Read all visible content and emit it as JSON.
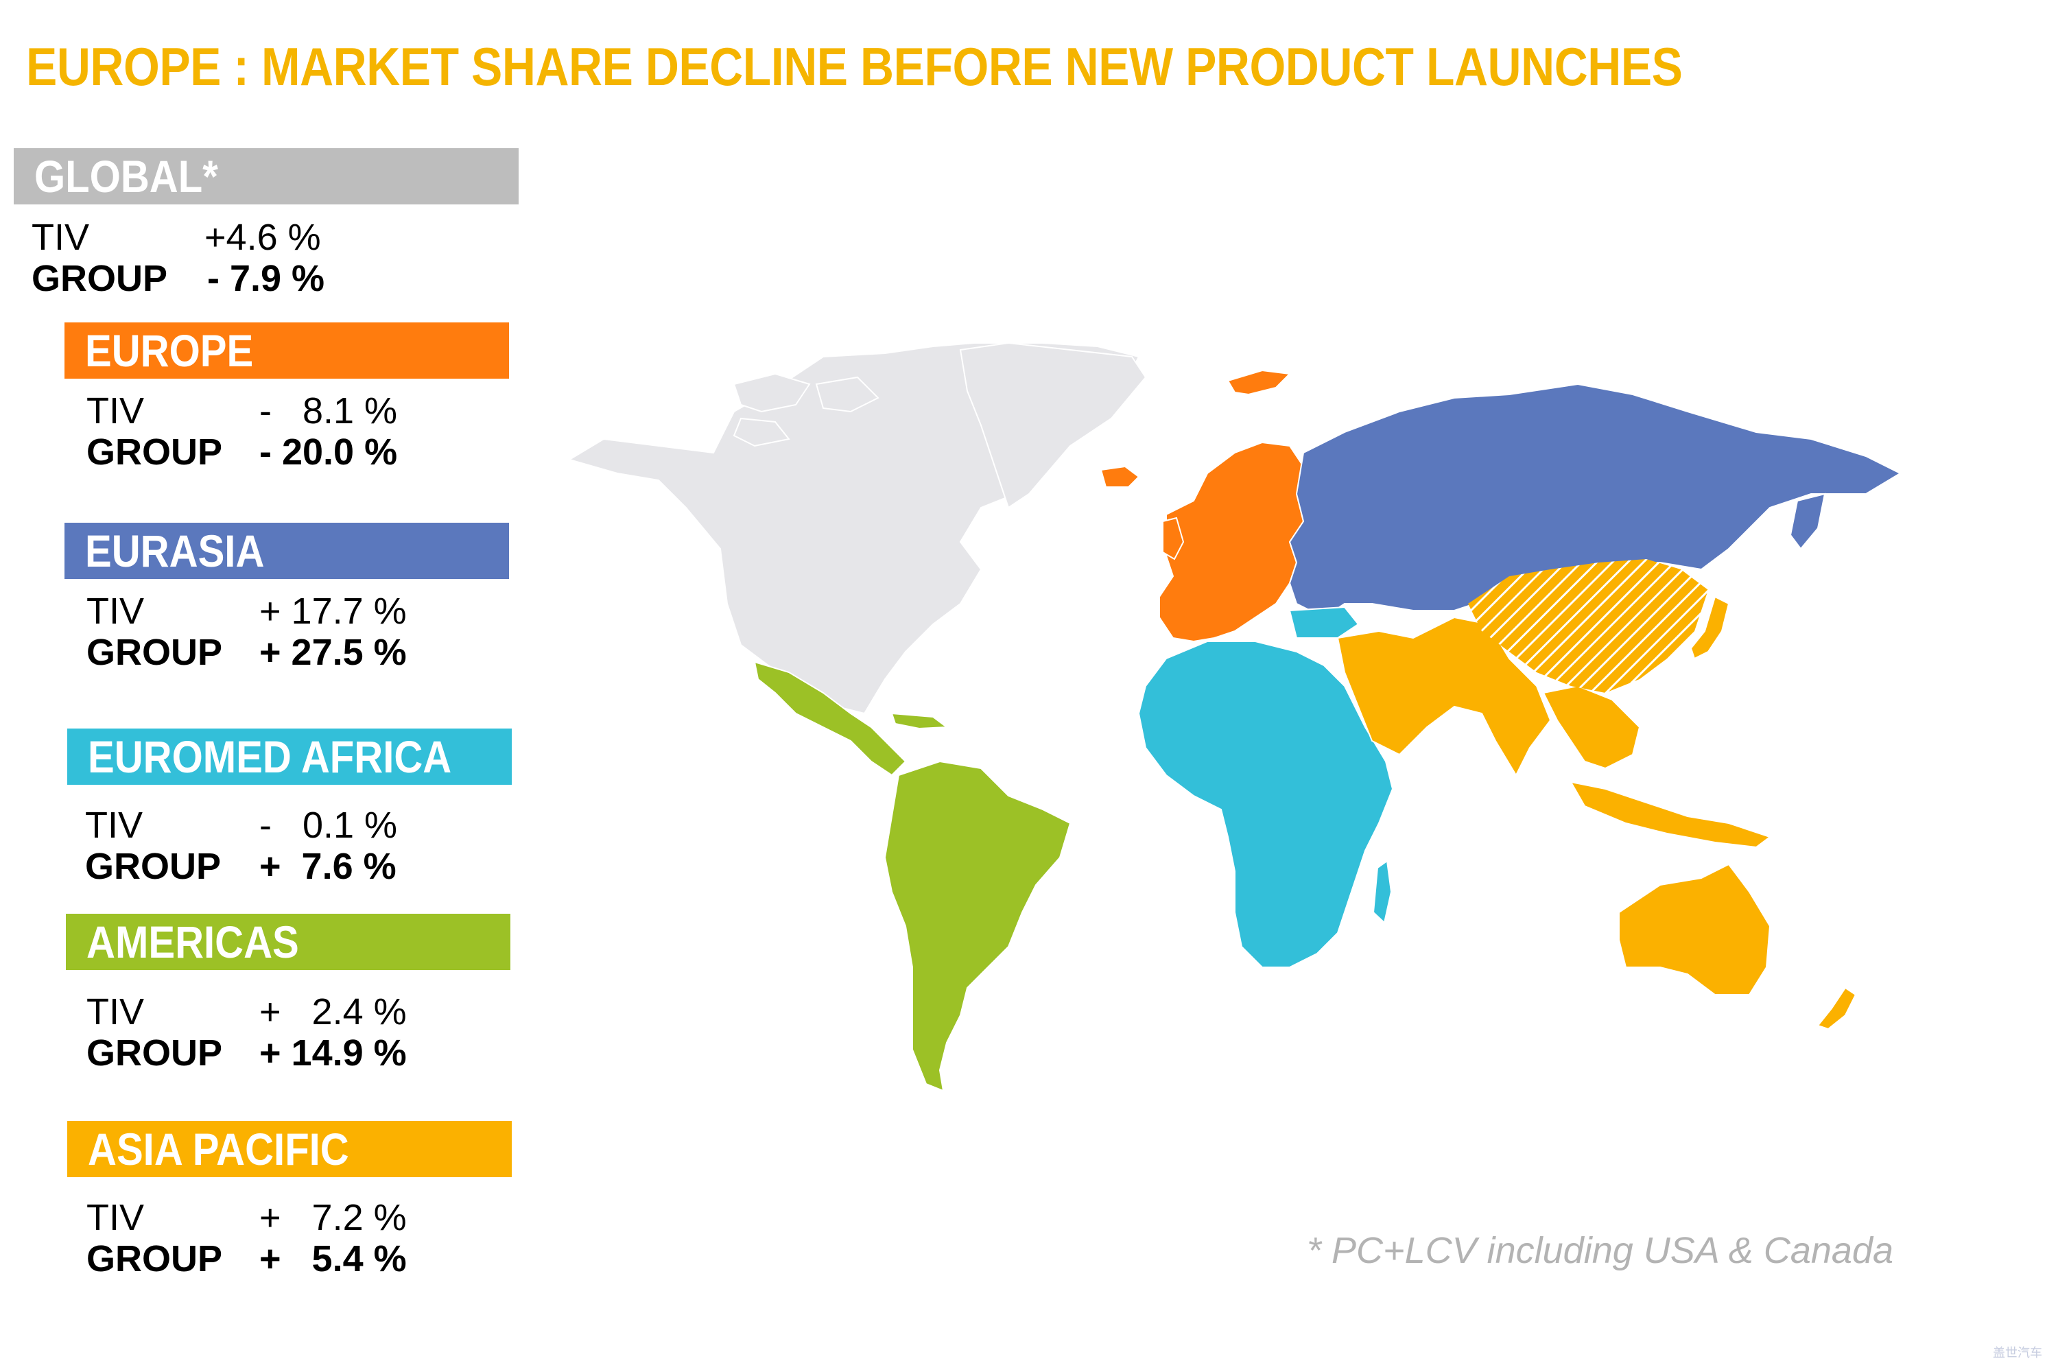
{
  "title": "EUROPE : MARKET SHARE DECLINE BEFORE NEW PRODUCT LAUNCHES",
  "colors": {
    "title": "#f5b400",
    "global": "#bdbdbd",
    "europe": "#ff7c0e",
    "eurasia": "#5b78bd",
    "euromed_africa": "#33bfd9",
    "americas": "#9cc126",
    "asia_pacific": "#fbb100",
    "north_america": "#e6e6e9"
  },
  "regions": [
    {
      "key": "global",
      "name": "GLOBAL*",
      "tiv_label": "TIV",
      "tiv_value": "+4.6 %",
      "group_label": "GROUP",
      "group_value": "- 7.9 %"
    },
    {
      "key": "europe",
      "name": "EUROPE",
      "tiv_label": "TIV",
      "tiv_value": "-   8.1 %",
      "group_label": "GROUP",
      "group_value": "- 20.0 %"
    },
    {
      "key": "eurasia",
      "name": "EURASIA",
      "tiv_label": "TIV",
      "tiv_value": "+ 17.7 %",
      "group_label": "GROUP",
      "group_value": "+ 27.5 %"
    },
    {
      "key": "euromed_africa",
      "name": "EUROMED AFRICA",
      "tiv_label": "TIV",
      "tiv_value": "-   0.1 %",
      "group_label": "GROUP",
      "group_value": "+  7.6 %"
    },
    {
      "key": "americas",
      "name": "AMERICAS",
      "tiv_label": "TIV",
      "tiv_value": "+   2.4 %",
      "group_label": "GROUP",
      "group_value": "+ 14.9 %"
    },
    {
      "key": "asia_pacific",
      "name": "ASIA PACIFIC",
      "tiv_label": "TIV",
      "tiv_value": "+   7.2 %",
      "group_label": "GROUP",
      "group_value": "+   5.4 %"
    }
  ],
  "footnote": "* PC+LCV including USA & Canada",
  "watermark": "盖世汽车"
}
